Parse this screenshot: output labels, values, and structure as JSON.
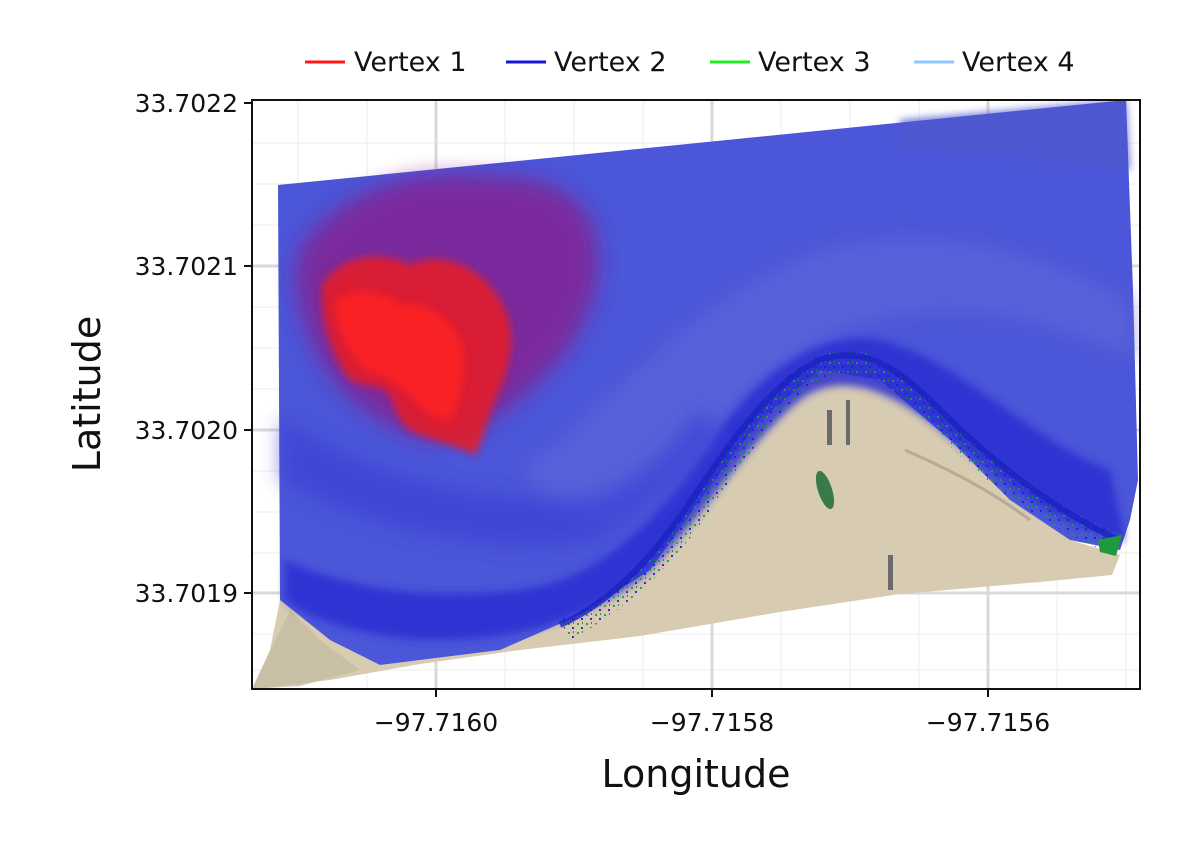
{
  "legend": {
    "items": [
      {
        "label": "Vertex 1",
        "color": "#ff1a1a"
      },
      {
        "label": "Vertex 2",
        "color": "#1414d6"
      },
      {
        "label": "Vertex 3",
        "color": "#22ee22"
      },
      {
        "label": "Vertex 4",
        "color": "#8ec9ff"
      }
    ]
  },
  "axes": {
    "x_title": "Longitude",
    "y_title": "Latitude",
    "x_ticks": [
      "−97.7160",
      "−97.7158",
      "−97.7156"
    ],
    "y_ticks": [
      "33.7022",
      "33.7021",
      "33.7020",
      "33.7019"
    ]
  },
  "map": {
    "x_range": [
      -97.71613,
      -97.71548
    ],
    "y_range": [
      33.70184,
      33.7022
    ],
    "x_tick_values": [
      -97.716,
      -97.7158,
      -97.7156
    ],
    "y_tick_values": [
      33.7022,
      33.7021,
      33.702,
      33.7019
    ],
    "grid": true,
    "layer_colors": {
      "water": "#4a55d8",
      "deep_water": "#2326d0",
      "vertex1_zone": "#ff1a1a",
      "vegetation_edge": "#1d8a3a",
      "land": "#d8ccb2"
    }
  }
}
